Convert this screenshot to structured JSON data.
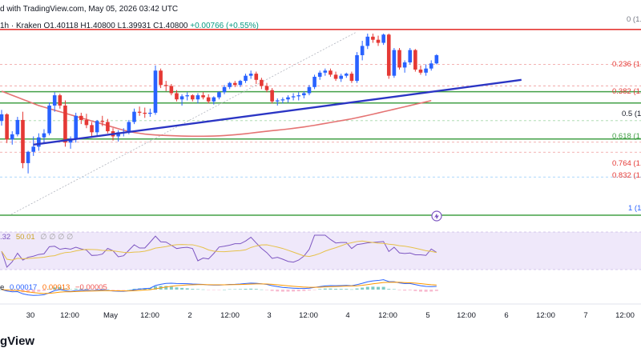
{
  "header": {
    "published": "d with TradingView.com, May 05, 2026 03:42 UTC",
    "ohlc_prefix": "1h · Kraken  O1.40118  H1.40800  L1.39931  C1.40800",
    "ohlc_change": "+0.00766 (+0.55%)"
  },
  "brand": "gView",
  "fib_labels": [
    "0 (1.",
    "0.236 (1.",
    "0.382 (1.",
    "0.5 (1.",
    "0.618 (1.",
    "0.764 (1.",
    "0.832 (1.",
    "1 (1."
  ],
  "rsi_header": {
    "v1": ".32",
    "v2": "50.01",
    "v3": "∅ ∅ ∅ ∅"
  },
  "macd_header": {
    "prefix": "e",
    "m1": "0.00017",
    "m2": "0.00013",
    "m3": "−0.00005"
  },
  "colors": {
    "up": "#2962ff",
    "down": "#e53935",
    "ma": "#e57373",
    "trendline": "#2b35c4",
    "support": "#43a047",
    "resistance": "#e53935",
    "rsi": "#7e57c2",
    "rsi_band": "#e1d6f5",
    "macd": "#2962ff",
    "signal": "#ff9800",
    "fib": "#ef9a9a"
  },
  "chart_data": {
    "type": "candlestick",
    "interval": "1h",
    "x_tick_labels": [
      "30",
      "12:00",
      "May",
      "12:00",
      "2",
      "12:00",
      "3",
      "12:00",
      "4",
      "12:00",
      "5",
      "12:00",
      "6",
      "12:00",
      "7",
      "12:00"
    ],
    "ylim": [
      1.27,
      1.47
    ],
    "candles": [
      [
        1.371,
        1.3818,
        1.3665,
        1.3775
      ],
      [
        1.3775,
        1.3785,
        1.3495,
        1.353
      ],
      [
        1.353,
        1.361,
        1.348,
        1.358
      ],
      [
        1.358,
        1.375,
        1.356,
        1.372
      ],
      [
        1.372,
        1.38,
        1.325,
        1.33
      ],
      [
        1.33,
        1.342,
        1.32,
        1.341
      ],
      [
        1.341,
        1.356,
        1.337,
        1.346
      ],
      [
        1.346,
        1.359,
        1.342,
        1.355
      ],
      [
        1.355,
        1.363,
        1.35,
        1.359
      ],
      [
        1.359,
        1.389,
        1.357,
        1.386
      ],
      [
        1.386,
        1.399,
        1.38,
        1.396
      ],
      [
        1.396,
        1.3975,
        1.383,
        1.386
      ],
      [
        1.386,
        1.391,
        1.346,
        1.35
      ],
      [
        1.35,
        1.356,
        1.344,
        1.354
      ],
      [
        1.354,
        1.379,
        1.35,
        1.376
      ],
      [
        1.376,
        1.379,
        1.368,
        1.372
      ],
      [
        1.372,
        1.378,
        1.364,
        1.367
      ],
      [
        1.367,
        1.37,
        1.356,
        1.36
      ],
      [
        1.36,
        1.372,
        1.357,
        1.371
      ],
      [
        1.371,
        1.376,
        1.366,
        1.37
      ],
      [
        1.37,
        1.373,
        1.359,
        1.361
      ],
      [
        1.361,
        1.364,
        1.352,
        1.356
      ],
      [
        1.356,
        1.362,
        1.351,
        1.36
      ],
      [
        1.36,
        1.364,
        1.356,
        1.36
      ],
      [
        1.36,
        1.372,
        1.358,
        1.37
      ],
      [
        1.37,
        1.383,
        1.368,
        1.38
      ],
      [
        1.38,
        1.385,
        1.376,
        1.379
      ],
      [
        1.379,
        1.384,
        1.374,
        1.378
      ],
      [
        1.378,
        1.383,
        1.375,
        1.379
      ],
      [
        1.379,
        1.425,
        1.377,
        1.42
      ],
      [
        1.42,
        1.422,
        1.403,
        1.406
      ],
      [
        1.406,
        1.41,
        1.4,
        1.405
      ],
      [
        1.405,
        1.407,
        1.396,
        1.398
      ],
      [
        1.398,
        1.401,
        1.39,
        1.392
      ],
      [
        1.392,
        1.397,
        1.386,
        1.395
      ],
      [
        1.395,
        1.399,
        1.391,
        1.396
      ],
      [
        1.396,
        1.397,
        1.39,
        1.392
      ],
      [
        1.392,
        1.398,
        1.388,
        1.396
      ],
      [
        1.396,
        1.399,
        1.392,
        1.394
      ],
      [
        1.394,
        1.397,
        1.388,
        1.39
      ],
      [
        1.39,
        1.395,
        1.387,
        1.394
      ],
      [
        1.394,
        1.4,
        1.392,
        1.399
      ],
      [
        1.399,
        1.406,
        1.397,
        1.404
      ],
      [
        1.404,
        1.409,
        1.402,
        1.408
      ],
      [
        1.408,
        1.41,
        1.404,
        1.406
      ],
      [
        1.406,
        1.411,
        1.404,
        1.41
      ],
      [
        1.41,
        1.417,
        1.408,
        1.415
      ],
      [
        1.415,
        1.42,
        1.412,
        1.417
      ],
      [
        1.417,
        1.419,
        1.407,
        1.411
      ],
      [
        1.411,
        1.413,
        1.402,
        1.405
      ],
      [
        1.405,
        1.408,
        1.399,
        1.401
      ],
      [
        1.401,
        1.403,
        1.388,
        1.39
      ],
      [
        1.39,
        1.393,
        1.386,
        1.391
      ],
      [
        1.391,
        1.394,
        1.388,
        1.392
      ],
      [
        1.392,
        1.396,
        1.389,
        1.394
      ],
      [
        1.394,
        1.398,
        1.391,
        1.395
      ],
      [
        1.395,
        1.399,
        1.391,
        1.396
      ],
      [
        1.396,
        1.4,
        1.393,
        1.398
      ],
      [
        1.398,
        1.406,
        1.396,
        1.404
      ],
      [
        1.404,
        1.416,
        1.402,
        1.414
      ],
      [
        1.414,
        1.42,
        1.411,
        1.418
      ],
      [
        1.418,
        1.422,
        1.415,
        1.42
      ],
      [
        1.42,
        1.422,
        1.414,
        1.416
      ],
      [
        1.416,
        1.419,
        1.41,
        1.412
      ],
      [
        1.412,
        1.417,
        1.409,
        1.415
      ],
      [
        1.415,
        1.418,
        1.413,
        1.417
      ],
      [
        1.417,
        1.419,
        1.408,
        1.41
      ],
      [
        1.41,
        1.438,
        1.408,
        1.435
      ],
      [
        1.435,
        1.449,
        1.43,
        1.444
      ],
      [
        1.444,
        1.456,
        1.441,
        1.453
      ],
      [
        1.453,
        1.456,
        1.447,
        1.45
      ],
      [
        1.45,
        1.454,
        1.444,
        1.447
      ],
      [
        1.447,
        1.456,
        1.445,
        1.455
      ],
      [
        1.455,
        1.456,
        1.412,
        1.415
      ],
      [
        1.415,
        1.442,
        1.413,
        1.44
      ],
      [
        1.44,
        1.442,
        1.421,
        1.423
      ],
      [
        1.423,
        1.43,
        1.418,
        1.428
      ],
      [
        1.428,
        1.442,
        1.426,
        1.44
      ],
      [
        1.44,
        1.441,
        1.419,
        1.421
      ],
      [
        1.421,
        1.425,
        1.416,
        1.418
      ],
      [
        1.418,
        1.426,
        1.415,
        1.422
      ],
      [
        1.422,
        1.43,
        1.42,
        1.427
      ],
      [
        1.427,
        1.436,
        1.426,
        1.435
      ]
    ],
    "moving_average": [
      1.4,
      1.398,
      1.396,
      1.394,
      1.392,
      1.39,
      1.388,
      1.386,
      1.3845,
      1.383,
      1.3815,
      1.38,
      1.3785,
      1.377,
      1.3755,
      1.374,
      1.3725,
      1.371,
      1.3695,
      1.368,
      1.3665,
      1.365,
      1.3635,
      1.362,
      1.3608,
      1.3598,
      1.359,
      1.3583,
      1.3578,
      1.3574,
      1.3571,
      1.3569,
      1.3567,
      1.3565,
      1.3563,
      1.3562,
      1.3561,
      1.3561,
      1.3561,
      1.3562,
      1.3563,
      1.3565,
      1.3568,
      1.3572,
      1.3576,
      1.3581,
      1.3586,
      1.3592,
      1.3598,
      1.3604,
      1.361,
      1.3616,
      1.3621,
      1.3626,
      1.3632,
      1.3638,
      1.3645,
      1.3652,
      1.366,
      1.3668,
      1.3677,
      1.3686,
      1.3695,
      1.3704,
      1.3713,
      1.3722,
      1.3731,
      1.3742,
      1.3753,
      1.3764,
      1.3776,
      1.3788,
      1.38,
      1.3812,
      1.3824,
      1.3836,
      1.3848,
      1.386,
      1.3872,
      1.3884,
      1.3896,
      1.3908
    ],
    "trendline": [
      [
        1.348,
        6
      ],
      [
        1.411,
        98
      ]
    ],
    "fib_retracement_levels": [
      0,
      0.236,
      0.382,
      0.5,
      0.618,
      0.764,
      0.832,
      1
    ],
    "horizontal_levels": {
      "resistance": 1.46,
      "support_upper": 1.3995,
      "support_middle": 1.3885,
      "support_lower": 1.3535
    },
    "rsi": {
      "range": [
        0,
        100
      ],
      "lines": [
        30,
        70
      ]
    },
    "macd": {
      "signal_line": true,
      "macd_line": true
    }
  }
}
